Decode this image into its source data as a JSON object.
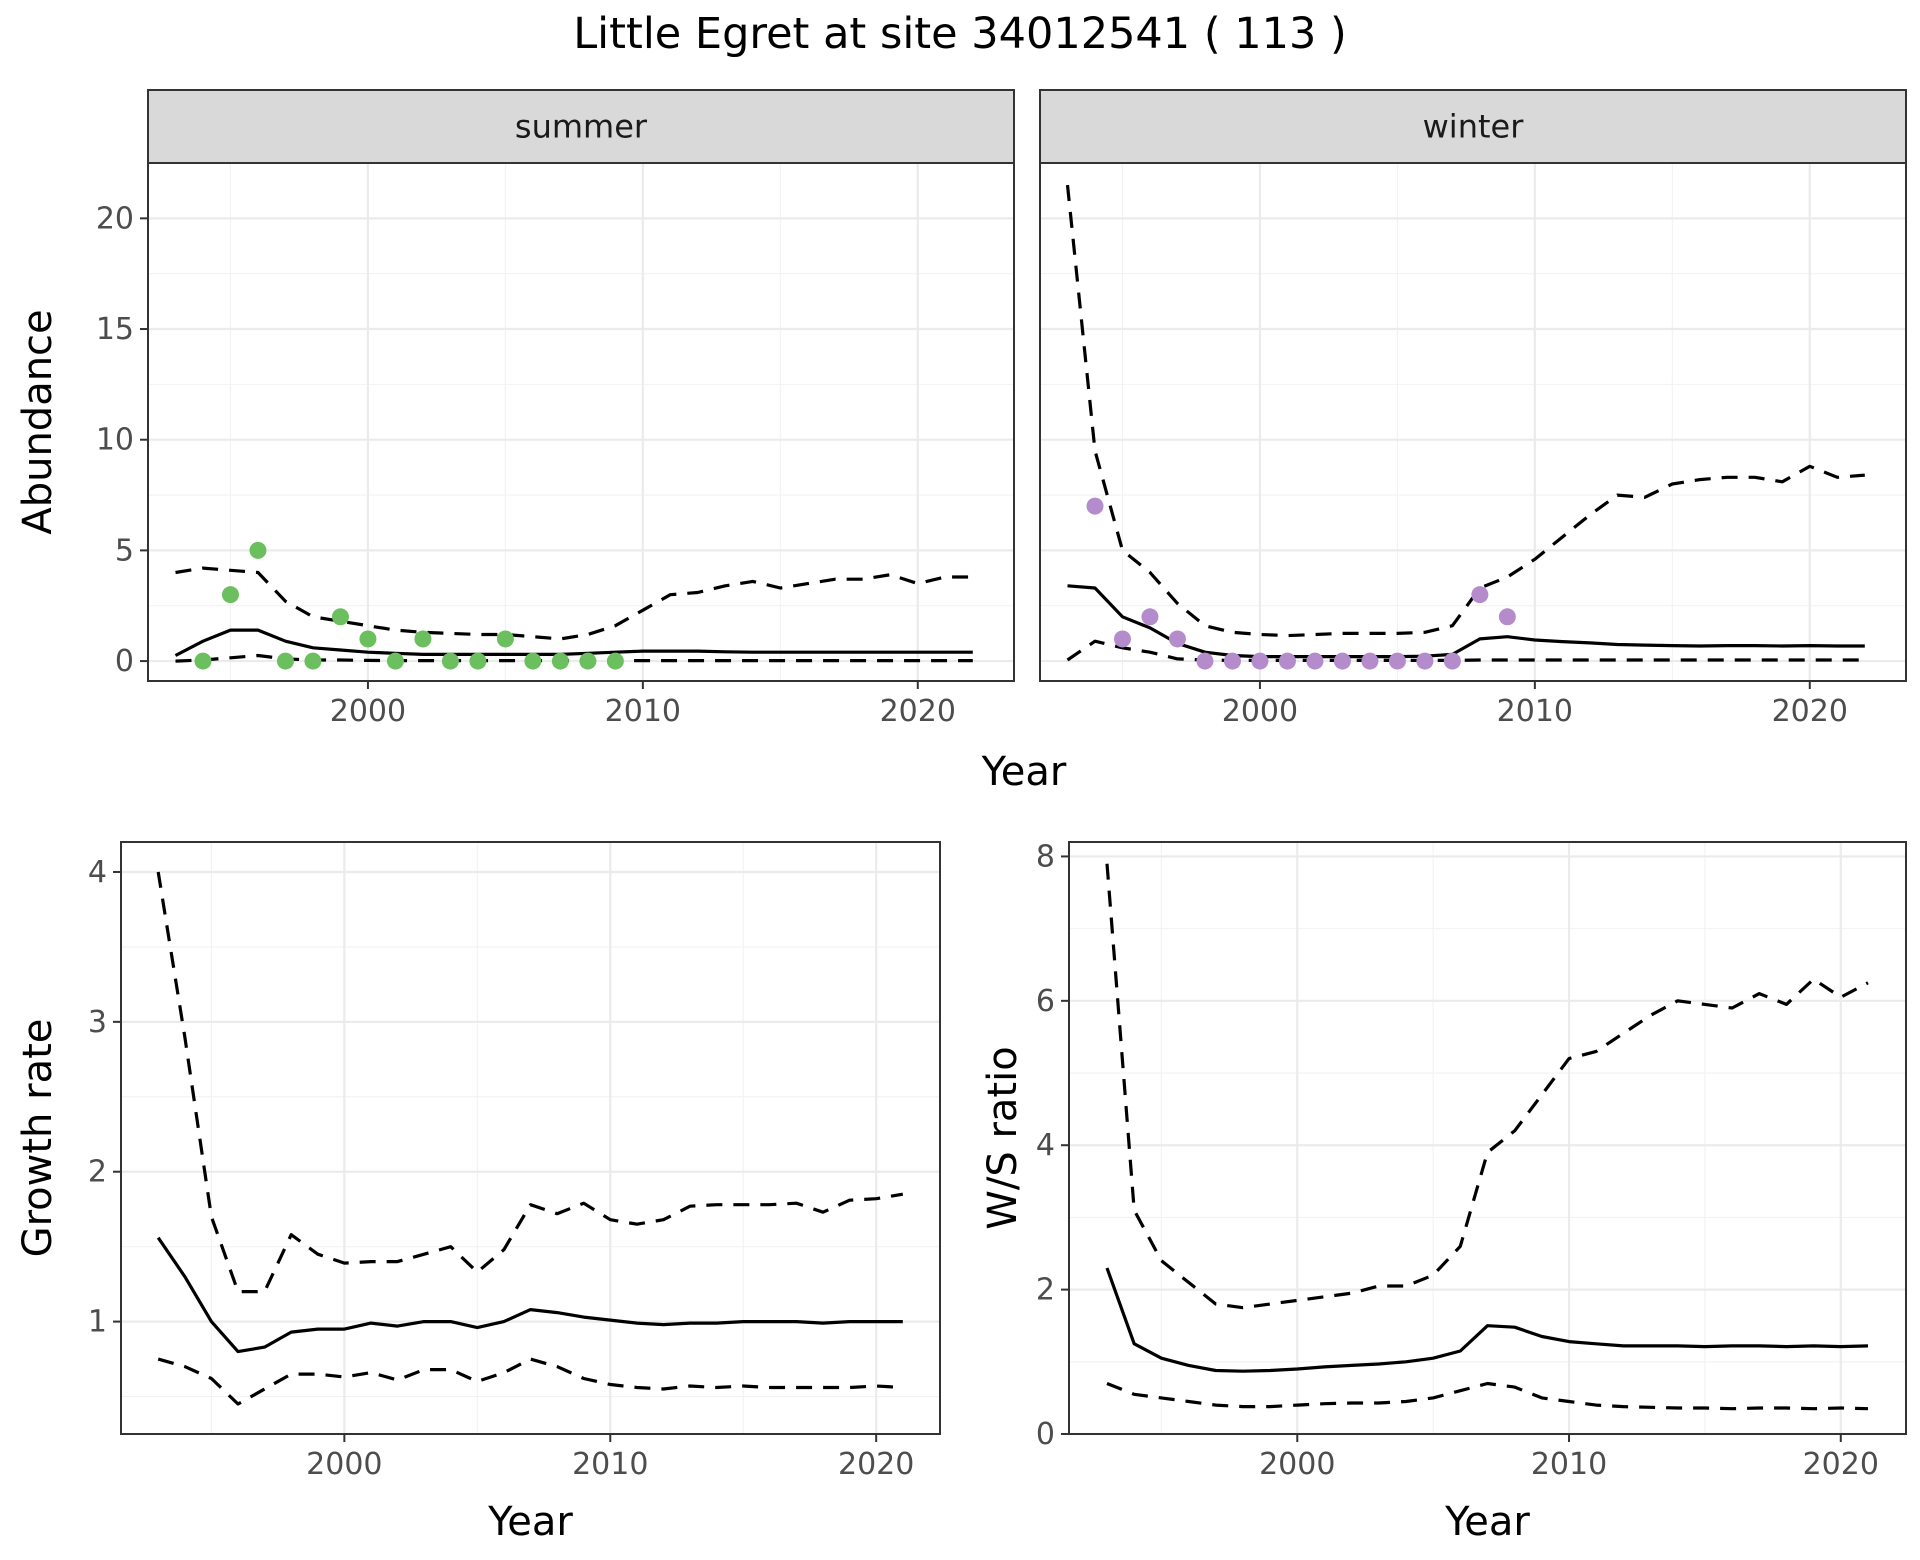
{
  "title": "Little Egret at site 34012541 ( 113 )",
  "colors": {
    "summer_points": "#6cbf5e",
    "winter_points": "#b48ccc",
    "lines": "#000000"
  },
  "shared_labels": {
    "abundance_x_title": "Year"
  },
  "chart_data": [
    {
      "type": "line",
      "facet": "summer",
      "xlabel": "",
      "ylabel": "Abundance",
      "xlim": [
        1992,
        2023.5
      ],
      "ylim": [
        -0.9,
        22.5
      ],
      "xticks": [
        2000,
        2010,
        2020
      ],
      "yticks": [
        0,
        5,
        10,
        15,
        20
      ],
      "x": [
        1993,
        1994,
        1995,
        1996,
        1997,
        1998,
        1999,
        2000,
        2001,
        2002,
        2003,
        2004,
        2005,
        2006,
        2007,
        2008,
        2009,
        2010,
        2011,
        2012,
        2013,
        2014,
        2015,
        2016,
        2017,
        2018,
        2019,
        2020,
        2021,
        2022
      ],
      "series": [
        {
          "role": "estimate",
          "style": "solid",
          "values": [
            0.25,
            0.9,
            1.4,
            1.4,
            0.9,
            0.6,
            0.5,
            0.4,
            0.35,
            0.3,
            0.3,
            0.3,
            0.3,
            0.3,
            0.3,
            0.35,
            0.4,
            0.45,
            0.45,
            0.45,
            0.42,
            0.4,
            0.4,
            0.4,
            0.4,
            0.4,
            0.4,
            0.4,
            0.4,
            0.4
          ]
        },
        {
          "role": "upper",
          "style": "dashed",
          "values": [
            4.0,
            4.2,
            4.1,
            4.0,
            2.7,
            2.0,
            1.8,
            1.6,
            1.4,
            1.3,
            1.25,
            1.2,
            1.2,
            1.1,
            1.0,
            1.2,
            1.6,
            2.3,
            3.0,
            3.1,
            3.4,
            3.6,
            3.3,
            3.5,
            3.7,
            3.7,
            3.9,
            3.5,
            3.8,
            3.8
          ]
        },
        {
          "role": "lower",
          "style": "dashed",
          "values": [
            0.0,
            0.05,
            0.15,
            0.25,
            0.1,
            0.05,
            0.05,
            0.03,
            0.02,
            0.02,
            0.02,
            0.02,
            0.02,
            0.02,
            0.02,
            0.02,
            0.02,
            0.02,
            0.02,
            0.02,
            0.02,
            0.02,
            0.02,
            0.02,
            0.02,
            0.02,
            0.02,
            0.02,
            0.02,
            0.02
          ]
        }
      ],
      "points": {
        "x": [
          1994,
          1995,
          1996,
          1997,
          1998,
          1999,
          2000,
          2001,
          2002,
          2003,
          2004,
          2005,
          2006,
          2007,
          2008,
          2009
        ],
        "y": [
          0,
          3,
          5,
          0,
          0,
          2,
          1,
          0,
          1,
          0,
          0,
          1,
          0,
          0,
          0,
          0
        ]
      }
    },
    {
      "type": "line",
      "facet": "winter",
      "xlabel": "",
      "ylabel": "",
      "xlim": [
        1992,
        2023.5
      ],
      "ylim": [
        -0.9,
        22.5
      ],
      "xticks": [
        2000,
        2010,
        2020
      ],
      "yticks": [
        0,
        5,
        10,
        15,
        20
      ],
      "x": [
        1993,
        1994,
        1995,
        1996,
        1997,
        1998,
        1999,
        2000,
        2001,
        2002,
        2003,
        2004,
        2005,
        2006,
        2007,
        2008,
        2009,
        2010,
        2011,
        2012,
        2013,
        2014,
        2015,
        2016,
        2017,
        2018,
        2019,
        2020,
        2021,
        2022
      ],
      "series": [
        {
          "role": "estimate",
          "style": "solid",
          "values": [
            3.4,
            3.3,
            2.0,
            1.5,
            0.8,
            0.4,
            0.25,
            0.2,
            0.2,
            0.2,
            0.2,
            0.2,
            0.2,
            0.22,
            0.3,
            1.0,
            1.1,
            0.95,
            0.88,
            0.82,
            0.75,
            0.72,
            0.7,
            0.68,
            0.7,
            0.7,
            0.68,
            0.7,
            0.68,
            0.68
          ]
        },
        {
          "role": "upper",
          "style": "dashed",
          "values": [
            21.5,
            9.5,
            5.0,
            4.0,
            2.6,
            1.6,
            1.3,
            1.2,
            1.15,
            1.2,
            1.25,
            1.25,
            1.25,
            1.3,
            1.6,
            3.3,
            3.8,
            4.6,
            5.6,
            6.6,
            7.5,
            7.4,
            8.0,
            8.2,
            8.3,
            8.3,
            8.1,
            8.8,
            8.3,
            8.4
          ]
        },
        {
          "role": "lower",
          "style": "dashed",
          "values": [
            0.05,
            0.9,
            0.6,
            0.4,
            0.1,
            0.05,
            0.03,
            0.03,
            0.03,
            0.03,
            0.03,
            0.03,
            0.03,
            0.03,
            0.03,
            0.05,
            0.05,
            0.05,
            0.05,
            0.05,
            0.05,
            0.05,
            0.05,
            0.05,
            0.05,
            0.05,
            0.05,
            0.05,
            0.05,
            0.05
          ]
        }
      ],
      "points": {
        "x": [
          1994,
          1995,
          1996,
          1997,
          1998,
          1999,
          2000,
          2001,
          2002,
          2003,
          2004,
          2005,
          2006,
          2007,
          2008,
          2009
        ],
        "y": [
          7,
          1,
          2,
          1,
          0,
          0,
          0,
          0,
          0,
          0,
          0,
          0,
          0,
          0,
          3,
          2
        ]
      }
    },
    {
      "type": "line",
      "xlabel": "Year",
      "ylabel": "Growth rate",
      "xlim": [
        1991.6,
        2022.4
      ],
      "ylim": [
        0.25,
        4.2
      ],
      "xticks": [
        2000,
        2010,
        2020
      ],
      "yticks": [
        1,
        2,
        3,
        4
      ],
      "x": [
        1993,
        1994,
        1995,
        1996,
        1997,
        1998,
        1999,
        2000,
        2001,
        2002,
        2003,
        2004,
        2005,
        2006,
        2007,
        2008,
        2009,
        2010,
        2011,
        2012,
        2013,
        2014,
        2015,
        2016,
        2017,
        2018,
        2019,
        2020,
        2021
      ],
      "series": [
        {
          "role": "estimate",
          "style": "solid",
          "values": [
            1.56,
            1.3,
            1.0,
            0.8,
            0.83,
            0.93,
            0.95,
            0.95,
            0.99,
            0.97,
            1.0,
            1.0,
            0.96,
            1.0,
            1.08,
            1.06,
            1.03,
            1.01,
            0.99,
            0.98,
            0.99,
            0.99,
            1.0,
            1.0,
            1.0,
            0.99,
            1.0,
            1.0,
            1.0
          ]
        },
        {
          "role": "upper",
          "style": "dashed",
          "values": [
            4.0,
            2.9,
            1.7,
            1.2,
            1.2,
            1.58,
            1.45,
            1.39,
            1.4,
            1.4,
            1.45,
            1.5,
            1.33,
            1.48,
            1.78,
            1.72,
            1.79,
            1.68,
            1.65,
            1.68,
            1.77,
            1.78,
            1.78,
            1.78,
            1.79,
            1.73,
            1.81,
            1.82,
            1.85
          ]
        },
        {
          "role": "lower",
          "style": "dashed",
          "values": [
            0.75,
            0.7,
            0.62,
            0.45,
            0.55,
            0.65,
            0.65,
            0.63,
            0.66,
            0.61,
            0.68,
            0.68,
            0.6,
            0.66,
            0.75,
            0.7,
            0.62,
            0.58,
            0.56,
            0.55,
            0.57,
            0.56,
            0.57,
            0.56,
            0.56,
            0.56,
            0.56,
            0.57,
            0.56
          ]
        }
      ]
    },
    {
      "type": "line",
      "xlabel": "Year",
      "ylabel": "W/S ratio",
      "xlim": [
        1991.6,
        2022.4
      ],
      "ylim": [
        0,
        8.2
      ],
      "xticks": [
        2000,
        2010,
        2020
      ],
      "yticks": [
        0,
        2,
        4,
        6,
        8
      ],
      "x": [
        1993,
        1994,
        1995,
        1996,
        1997,
        1998,
        1999,
        2000,
        2001,
        2002,
        2003,
        2004,
        2005,
        2006,
        2007,
        2008,
        2009,
        2010,
        2011,
        2012,
        2013,
        2014,
        2015,
        2016,
        2017,
        2018,
        2019,
        2020,
        2021
      ],
      "series": [
        {
          "role": "estimate",
          "style": "solid",
          "values": [
            2.3,
            1.25,
            1.05,
            0.95,
            0.88,
            0.87,
            0.88,
            0.9,
            0.93,
            0.95,
            0.97,
            1.0,
            1.05,
            1.15,
            1.5,
            1.48,
            1.35,
            1.28,
            1.25,
            1.22,
            1.22,
            1.22,
            1.21,
            1.22,
            1.22,
            1.21,
            1.22,
            1.21,
            1.22
          ]
        },
        {
          "role": "upper",
          "style": "dashed",
          "values": [
            7.9,
            3.1,
            2.4,
            2.1,
            1.8,
            1.75,
            1.8,
            1.85,
            1.9,
            1.95,
            2.05,
            2.05,
            2.2,
            2.6,
            3.9,
            4.2,
            4.7,
            5.2,
            5.3,
            5.55,
            5.8,
            6.0,
            5.95,
            5.9,
            6.1,
            5.95,
            6.3,
            6.05,
            6.25
          ]
        },
        {
          "role": "lower",
          "style": "dashed",
          "values": [
            0.7,
            0.55,
            0.5,
            0.45,
            0.4,
            0.38,
            0.38,
            0.4,
            0.42,
            0.43,
            0.43,
            0.45,
            0.5,
            0.6,
            0.7,
            0.65,
            0.5,
            0.45,
            0.4,
            0.38,
            0.37,
            0.36,
            0.36,
            0.35,
            0.36,
            0.36,
            0.35,
            0.36,
            0.35
          ]
        }
      ]
    }
  ]
}
